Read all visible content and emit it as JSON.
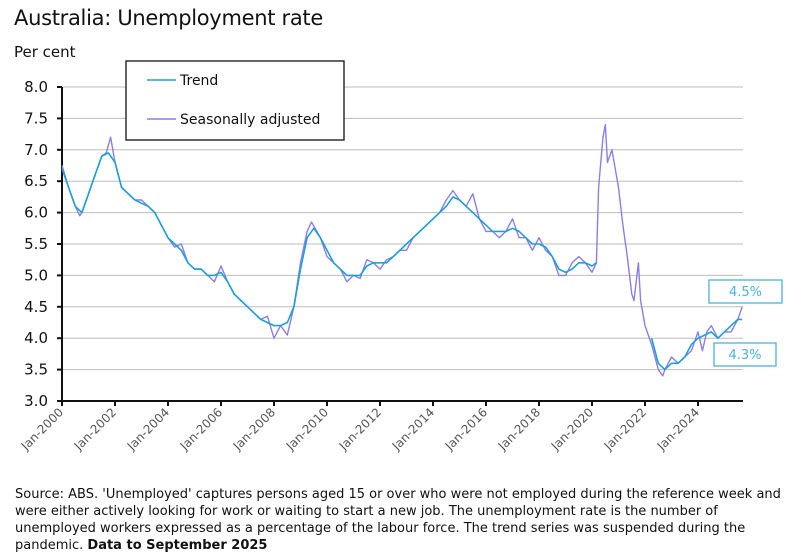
{
  "chart_data": {
    "type": "line",
    "title": "Australia: Unemployment rate",
    "ylabel": "Per cent",
    "ylim": [
      3.0,
      8.0
    ],
    "yticks": [
      "3.0",
      "3.5",
      "4.0",
      "4.5",
      "5.0",
      "5.5",
      "6.0",
      "6.5",
      "7.0",
      "7.5",
      "8.0"
    ],
    "xlim": [
      "2000-01",
      "2025-09"
    ],
    "xtick_labels": [
      "Jan-2000",
      "Jan-2002",
      "Jan-2004",
      "Jan-2006",
      "Jan-2008",
      "Jan-2010",
      "Jan-2012",
      "Jan-2014",
      "Jan-2016",
      "Jan-2018",
      "Jan-2020",
      "Jan-2022",
      "Jan-2024"
    ],
    "grid": true,
    "legend_position": "top-left",
    "series": [
      {
        "name": "Trend",
        "color": "#1e9fd6",
        "points": [
          [
            "2000-01",
            6.7
          ],
          [
            "2000-04",
            6.4
          ],
          [
            "2000-07",
            6.1
          ],
          [
            "2000-10",
            6.0
          ],
          [
            "2001-01",
            6.3
          ],
          [
            "2001-04",
            6.6
          ],
          [
            "2001-07",
            6.9
          ],
          [
            "2001-10",
            6.95
          ],
          [
            "2002-01",
            6.8
          ],
          [
            "2002-04",
            6.4
          ],
          [
            "2002-07",
            6.3
          ],
          [
            "2002-10",
            6.2
          ],
          [
            "2003-01",
            6.15
          ],
          [
            "2003-04",
            6.1
          ],
          [
            "2003-07",
            6.0
          ],
          [
            "2003-10",
            5.8
          ],
          [
            "2004-01",
            5.6
          ],
          [
            "2004-04",
            5.5
          ],
          [
            "2004-07",
            5.4
          ],
          [
            "2004-10",
            5.2
          ],
          [
            "2005-01",
            5.1
          ],
          [
            "2005-04",
            5.1
          ],
          [
            "2005-07",
            5.0
          ],
          [
            "2005-10",
            5.0
          ],
          [
            "2006-01",
            5.05
          ],
          [
            "2006-04",
            4.9
          ],
          [
            "2006-07",
            4.7
          ],
          [
            "2006-10",
            4.6
          ],
          [
            "2007-01",
            4.5
          ],
          [
            "2007-04",
            4.4
          ],
          [
            "2007-07",
            4.3
          ],
          [
            "2007-10",
            4.25
          ],
          [
            "2008-01",
            4.2
          ],
          [
            "2008-04",
            4.2
          ],
          [
            "2008-07",
            4.25
          ],
          [
            "2008-10",
            4.5
          ],
          [
            "2009-01",
            5.1
          ],
          [
            "2009-04",
            5.6
          ],
          [
            "2009-07",
            5.75
          ],
          [
            "2009-10",
            5.6
          ],
          [
            "2010-01",
            5.4
          ],
          [
            "2010-04",
            5.2
          ],
          [
            "2010-07",
            5.1
          ],
          [
            "2010-10",
            5.0
          ],
          [
            "2011-01",
            5.0
          ],
          [
            "2011-04",
            5.0
          ],
          [
            "2011-07",
            5.15
          ],
          [
            "2011-10",
            5.2
          ],
          [
            "2012-01",
            5.2
          ],
          [
            "2012-04",
            5.2
          ],
          [
            "2012-07",
            5.3
          ],
          [
            "2012-10",
            5.4
          ],
          [
            "2013-01",
            5.5
          ],
          [
            "2013-04",
            5.6
          ],
          [
            "2013-07",
            5.7
          ],
          [
            "2013-10",
            5.8
          ],
          [
            "2014-01",
            5.9
          ],
          [
            "2014-04",
            6.0
          ],
          [
            "2014-07",
            6.1
          ],
          [
            "2014-10",
            6.25
          ],
          [
            "2015-01",
            6.2
          ],
          [
            "2015-04",
            6.1
          ],
          [
            "2015-07",
            6.0
          ],
          [
            "2015-10",
            5.9
          ],
          [
            "2016-01",
            5.8
          ],
          [
            "2016-04",
            5.7
          ],
          [
            "2016-07",
            5.7
          ],
          [
            "2016-10",
            5.7
          ],
          [
            "2017-01",
            5.75
          ],
          [
            "2017-04",
            5.7
          ],
          [
            "2017-07",
            5.6
          ],
          [
            "2017-10",
            5.5
          ],
          [
            "2018-01",
            5.5
          ],
          [
            "2018-04",
            5.45
          ],
          [
            "2018-07",
            5.3
          ],
          [
            "2018-10",
            5.1
          ],
          [
            "2019-01",
            5.05
          ],
          [
            "2019-04",
            5.1
          ],
          [
            "2019-07",
            5.2
          ],
          [
            "2019-10",
            5.2
          ],
          [
            "2020-01",
            5.15
          ],
          [
            "2020-03",
            5.2
          ],
          null,
          [
            "2022-04",
            4.0
          ],
          [
            "2022-07",
            3.6
          ],
          [
            "2022-10",
            3.5
          ],
          [
            "2023-01",
            3.6
          ],
          [
            "2023-04",
            3.6
          ],
          [
            "2023-07",
            3.7
          ],
          [
            "2023-10",
            3.9
          ],
          [
            "2024-01",
            4.0
          ],
          [
            "2024-04",
            4.05
          ],
          [
            "2024-07",
            4.1
          ],
          [
            "2024-10",
            4.0
          ],
          [
            "2025-01",
            4.1
          ],
          [
            "2025-04",
            4.2
          ],
          [
            "2025-07",
            4.3
          ],
          [
            "2025-09",
            4.3
          ]
        ]
      },
      {
        "name": "Seasonally adjusted",
        "color": "#8c7ee6",
        "points": [
          [
            "2000-01",
            6.75
          ],
          [
            "2000-04",
            6.4
          ],
          [
            "2000-07",
            6.1
          ],
          [
            "2000-09",
            5.95
          ],
          [
            "2000-10",
            6.0
          ],
          [
            "2001-01",
            6.3
          ],
          [
            "2001-04",
            6.6
          ],
          [
            "2001-07",
            6.9
          ],
          [
            "2001-09",
            6.95
          ],
          [
            "2001-11",
            7.2
          ],
          [
            "2002-01",
            6.8
          ],
          [
            "2002-04",
            6.4
          ],
          [
            "2002-07",
            6.3
          ],
          [
            "2002-10",
            6.2
          ],
          [
            "2003-01",
            6.2
          ],
          [
            "2003-04",
            6.1
          ],
          [
            "2003-07",
            6.0
          ],
          [
            "2003-10",
            5.8
          ],
          [
            "2004-01",
            5.6
          ],
          [
            "2004-04",
            5.45
          ],
          [
            "2004-07",
            5.5
          ],
          [
            "2004-10",
            5.2
          ],
          [
            "2005-01",
            5.1
          ],
          [
            "2005-04",
            5.1
          ],
          [
            "2005-07",
            5.0
          ],
          [
            "2005-10",
            4.9
          ],
          [
            "2006-01",
            5.15
          ],
          [
            "2006-04",
            4.9
          ],
          [
            "2006-07",
            4.7
          ],
          [
            "2006-10",
            4.6
          ],
          [
            "2007-01",
            4.5
          ],
          [
            "2007-04",
            4.4
          ],
          [
            "2007-07",
            4.3
          ],
          [
            "2007-10",
            4.35
          ],
          [
            "2008-01",
            4.0
          ],
          [
            "2008-04",
            4.2
          ],
          [
            "2008-07",
            4.05
          ],
          [
            "2008-10",
            4.5
          ],
          [
            "2009-01",
            5.2
          ],
          [
            "2009-04",
            5.7
          ],
          [
            "2009-06",
            5.85
          ],
          [
            "2009-10",
            5.6
          ],
          [
            "2010-01",
            5.3
          ],
          [
            "2010-04",
            5.2
          ],
          [
            "2010-07",
            5.1
          ],
          [
            "2010-10",
            4.9
          ],
          [
            "2011-01",
            5.0
          ],
          [
            "2011-04",
            4.95
          ],
          [
            "2011-07",
            5.25
          ],
          [
            "2011-10",
            5.2
          ],
          [
            "2012-01",
            5.1
          ],
          [
            "2012-04",
            5.25
          ],
          [
            "2012-07",
            5.3
          ],
          [
            "2012-10",
            5.4
          ],
          [
            "2013-01",
            5.4
          ],
          [
            "2013-04",
            5.6
          ],
          [
            "2013-07",
            5.7
          ],
          [
            "2013-10",
            5.8
          ],
          [
            "2014-01",
            5.9
          ],
          [
            "2014-04",
            6.0
          ],
          [
            "2014-07",
            6.2
          ],
          [
            "2014-10",
            6.35
          ],
          [
            "2015-01",
            6.2
          ],
          [
            "2015-04",
            6.1
          ],
          [
            "2015-07",
            6.3
          ],
          [
            "2015-10",
            5.9
          ],
          [
            "2016-01",
            5.7
          ],
          [
            "2016-04",
            5.7
          ],
          [
            "2016-07",
            5.6
          ],
          [
            "2016-10",
            5.7
          ],
          [
            "2017-01",
            5.9
          ],
          [
            "2017-04",
            5.6
          ],
          [
            "2017-07",
            5.6
          ],
          [
            "2017-10",
            5.4
          ],
          [
            "2018-01",
            5.6
          ],
          [
            "2018-04",
            5.4
          ],
          [
            "2018-07",
            5.3
          ],
          [
            "2018-10",
            5.0
          ],
          [
            "2019-01",
            5.0
          ],
          [
            "2019-04",
            5.2
          ],
          [
            "2019-07",
            5.3
          ],
          [
            "2019-10",
            5.2
          ],
          [
            "2020-01",
            5.05
          ],
          [
            "2020-03",
            5.2
          ],
          [
            "2020-04",
            6.4
          ],
          [
            "2020-06",
            7.2
          ],
          [
            "2020-07",
            7.4
          ],
          [
            "2020-08",
            6.8
          ],
          [
            "2020-10",
            7.0
          ],
          [
            "2020-12",
            6.6
          ],
          [
            "2021-01",
            6.4
          ],
          [
            "2021-03",
            5.8
          ],
          [
            "2021-05",
            5.3
          ],
          [
            "2021-07",
            4.7
          ],
          [
            "2021-08",
            4.6
          ],
          [
            "2021-10",
            5.2
          ],
          [
            "2021-11",
            4.6
          ],
          [
            "2022-01",
            4.2
          ],
          [
            "2022-04",
            3.9
          ],
          [
            "2022-07",
            3.5
          ],
          [
            "2022-09",
            3.4
          ],
          [
            "2022-10",
            3.5
          ],
          [
            "2023-01",
            3.7
          ],
          [
            "2023-04",
            3.6
          ],
          [
            "2023-07",
            3.7
          ],
          [
            "2023-10",
            3.8
          ],
          [
            "2024-01",
            4.1
          ],
          [
            "2024-03",
            3.8
          ],
          [
            "2024-05",
            4.1
          ],
          [
            "2024-07",
            4.2
          ],
          [
            "2024-10",
            4.0
          ],
          [
            "2025-01",
            4.1
          ],
          [
            "2025-04",
            4.1
          ],
          [
            "2025-07",
            4.3
          ],
          [
            "2025-09",
            4.5
          ]
        ]
      }
    ],
    "annotations": [
      {
        "text": "4.5%",
        "series": "Seasonally adjusted"
      },
      {
        "text": "4.3%",
        "series": "Trend"
      }
    ],
    "annotation_color": "#4ab3d9"
  },
  "footer": {
    "source": "Source: ABS.  'Unemployed' captures persons aged 15 or over who were not employed during the reference week and were either actively looking for work or waiting to start a new job. The unemployment rate is the number of unemployed workers expressed as a percentage of the labour force. The trend series was suspended during the pandemic.",
    "data_note": "Data to September 2025"
  }
}
